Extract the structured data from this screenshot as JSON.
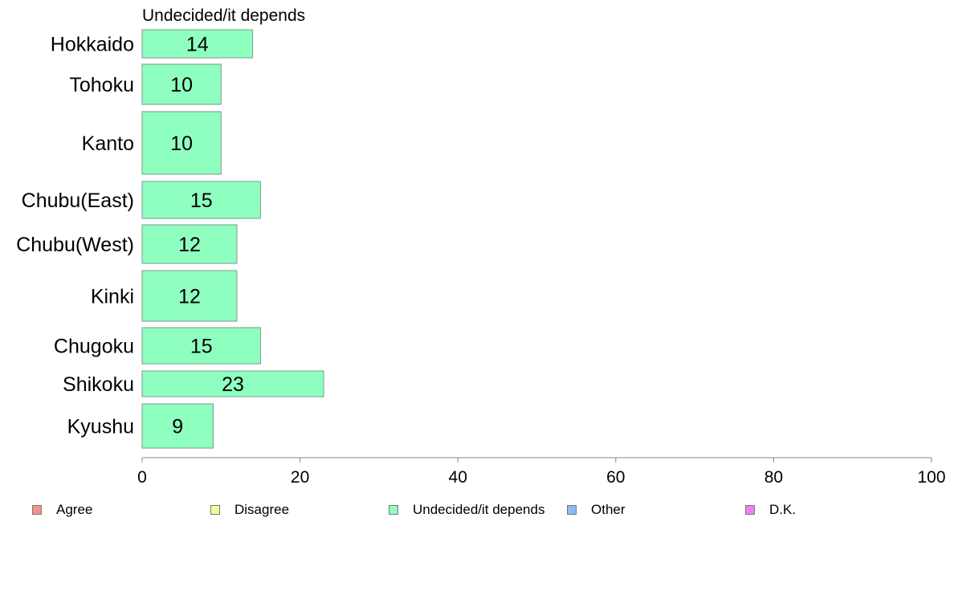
{
  "chart_data": {
    "type": "bar",
    "orientation": "horizontal",
    "title": "Undecided/it depends",
    "categories": [
      "Hokkaido",
      "Tohoku",
      "Kanto",
      "Chubu(East)",
      "Chubu(West)",
      "Kinki",
      "Chugoku",
      "Shikoku",
      "Kyushu"
    ],
    "series": [
      {
        "name": "Undecided/it depends",
        "color": "#8fffc0",
        "values": [
          14,
          10,
          10,
          15,
          12,
          12,
          15,
          23,
          9
        ],
        "labels": [
          "14",
          "10",
          "10",
          "15",
          "12",
          "12",
          "15",
          "23",
          "9"
        ]
      }
    ],
    "xlim": [
      0,
      100
    ],
    "xticks": [
      0,
      20,
      40,
      60,
      80,
      100
    ],
    "xtick_labels": [
      "0",
      "20",
      "40",
      "60",
      "80",
      "100"
    ],
    "grid": false,
    "legend_position": "bottom",
    "legend": [
      {
        "label": "Agree",
        "color": "#f4938d"
      },
      {
        "label": "Disagree",
        "color": "#efff94"
      },
      {
        "label": "Undecided/it depends",
        "color": "#8fffc0"
      },
      {
        "label": "Other",
        "color": "#8db8f7"
      },
      {
        "label": "D.K.",
        "color": "#ee82f5"
      }
    ]
  }
}
